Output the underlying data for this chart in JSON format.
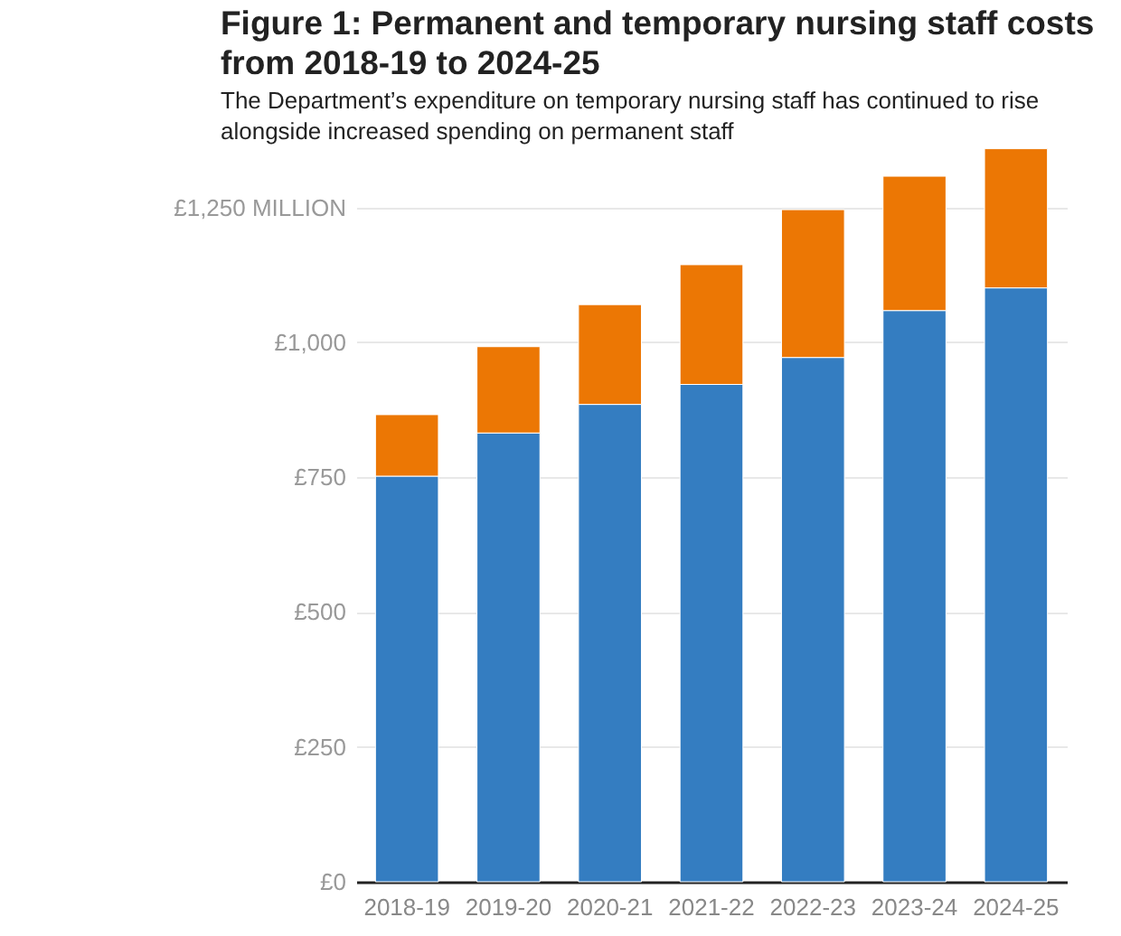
{
  "chart_data": {
    "type": "bar",
    "title": "Figure 1: Permanent and temporary nursing staff costs from 2018-19 to 2024-25",
    "subtitle": "The Department’s expenditure on temporary nursing staff has continued to rise alongside increased spending on permanent staff",
    "categories": [
      "2018-19",
      "2019-20",
      "2020-21",
      "2021-22",
      "2022-23",
      "2023-24",
      "2024-25"
    ],
    "stacked": true,
    "series": [
      {
        "color": "#347dc1",
        "values": [
          752,
          832,
          885,
          922,
          972,
          1059,
          1101
        ]
      },
      {
        "color": "#ec7704",
        "values": [
          114,
          160,
          185,
          222,
          274,
          249,
          258
        ]
      }
    ],
    "ylim": [
      0,
      1360
    ],
    "yticks": [
      {
        "value": 0,
        "label": "£0"
      },
      {
        "value": 250,
        "label": "£250"
      },
      {
        "value": 500,
        "label": "£500"
      },
      {
        "value": 750,
        "label": "£750"
      },
      {
        "value": 1000,
        "label": "£1,000"
      },
      {
        "value": 1250,
        "label": "£1,250 MILLION"
      }
    ],
    "grid": "y",
    "legend": false
  }
}
